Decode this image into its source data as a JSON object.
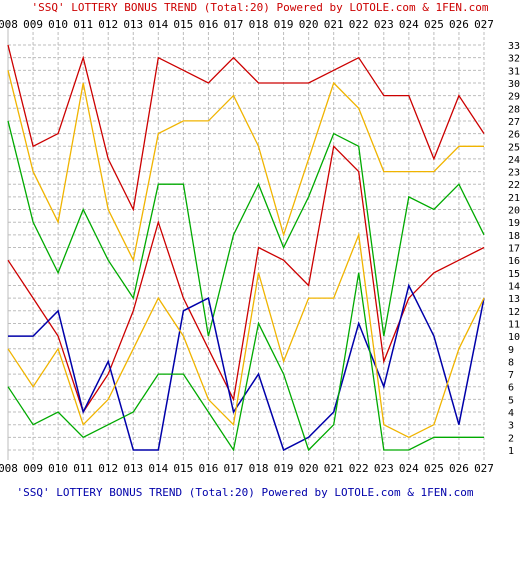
{
  "chart_data": {
    "type": "line",
    "title": "'SSQ' LOTTERY BONUS TREND (Total:20)  Powered by LOTOLE.com & 1FEN.com",
    "footer": "'SSQ' LOTTERY BONUS TREND (Total:20)  Powered by LOTOLE.com & 1FEN.com",
    "x": [
      "008",
      "009",
      "010",
      "011",
      "012",
      "013",
      "014",
      "015",
      "016",
      "017",
      "018",
      "019",
      "020",
      "021",
      "022",
      "023",
      "024",
      "025",
      "026",
      "027"
    ],
    "ylim": [
      1,
      33
    ],
    "y_ticks": [
      1,
      2,
      3,
      4,
      5,
      6,
      7,
      8,
      9,
      10,
      11,
      12,
      13,
      14,
      15,
      16,
      17,
      18,
      19,
      20,
      21,
      22,
      23,
      24,
      25,
      26,
      27,
      28,
      29,
      30,
      31,
      32,
      33
    ],
    "grid": true,
    "title_color": "#cc0000",
    "series": [
      {
        "color": "#cc0000",
        "values": [
          33,
          25,
          26,
          32,
          24,
          20,
          32,
          31,
          30,
          32,
          30,
          30,
          30,
          31,
          32,
          29,
          29,
          24,
          29,
          26
        ]
      },
      {
        "color": "#f0b400",
        "values": [
          31,
          23,
          19,
          30,
          20,
          16,
          26,
          27,
          27,
          29,
          25,
          18,
          24,
          30,
          28,
          23,
          23,
          23,
          25,
          25
        ]
      },
      {
        "color": "#00aa00",
        "values": [
          27,
          19,
          15,
          20,
          16,
          13,
          22,
          22,
          10,
          18,
          22,
          17,
          21,
          26,
          25,
          10,
          21,
          20,
          22,
          18
        ]
      },
      {
        "color": "#cc0000",
        "values": [
          16,
          13,
          10,
          4,
          7,
          12,
          19,
          13,
          9,
          5,
          17,
          16,
          14,
          25,
          23,
          8,
          13,
          15,
          16,
          17
        ]
      },
      {
        "color": "#0000aa",
        "values": [
          10,
          10,
          12,
          4,
          8,
          1,
          1,
          12,
          13,
          4,
          7,
          1,
          2,
          4,
          11,
          6,
          14,
          10,
          3,
          13
        ]
      },
      {
        "color": "#f0b400",
        "values": [
          9,
          6,
          9,
          3,
          5,
          9,
          13,
          10,
          5,
          3,
          15,
          8,
          13,
          13,
          18,
          3,
          2,
          3,
          9,
          13
        ]
      },
      {
        "color": "#00aa00",
        "values": [
          6,
          3,
          4,
          2,
          3,
          4,
          7,
          7,
          4,
          1,
          11,
          7,
          1,
          3,
          15,
          1,
          1,
          2,
          2,
          2
        ]
      }
    ]
  }
}
